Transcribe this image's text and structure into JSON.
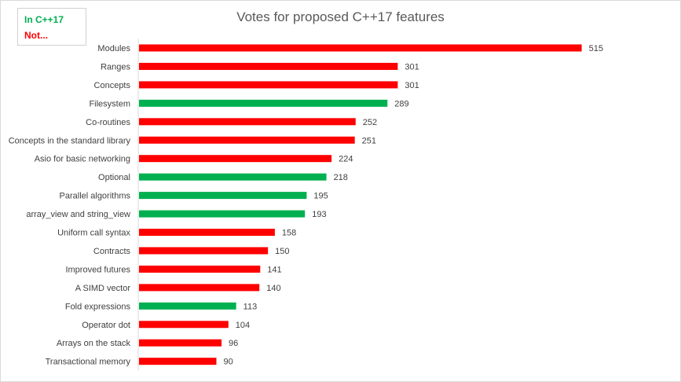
{
  "chart_data": {
    "type": "bar",
    "orientation": "horizontal",
    "title": "Votes for proposed C++17 features",
    "categories": [
      "Modules",
      "Ranges",
      "Concepts",
      "Filesystem",
      "Co-routines",
      "Concepts in the standard library",
      "Asio for basic networking",
      "Optional",
      "Parallel algorithms",
      "array_view and string_view",
      "Uniform call syntax",
      "Contracts",
      "Improved futures",
      "A SIMD vector",
      "Fold expressions",
      "Operator dot",
      "Arrays on the stack",
      "Transactional memory"
    ],
    "values": [
      515,
      301,
      301,
      289,
      252,
      251,
      224,
      218,
      195,
      193,
      158,
      150,
      141,
      140,
      113,
      104,
      96,
      90
    ],
    "status": [
      "not",
      "not",
      "not",
      "in",
      "not",
      "not",
      "not",
      "in",
      "in",
      "in",
      "not",
      "not",
      "not",
      "not",
      "in",
      "not",
      "not",
      "not"
    ],
    "xlim": [
      0,
      530
    ],
    "grid": false,
    "data_labels": true,
    "legend": {
      "placement": "top-left",
      "entries": [
        {
          "key": "in",
          "label": "In C++17",
          "color": "#00b050"
        },
        {
          "key": "not",
          "label": "Not...",
          "color": "#ff0000"
        }
      ]
    },
    "colors": {
      "in": "#00b050",
      "not": "#ff0000"
    }
  }
}
